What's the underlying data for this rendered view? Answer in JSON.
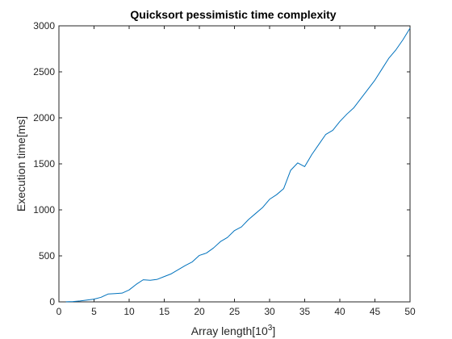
{
  "chart_data": {
    "type": "line",
    "title": "Quicksort pessimistic time complexity",
    "xlabel": "Array length[10",
    "xlabel_superscript": "3",
    "xlabel_suffix": "]",
    "ylabel": "Execution time[ms]",
    "xlim": [
      0,
      50
    ],
    "ylim": [
      0,
      3000
    ],
    "xticks": [
      0,
      5,
      10,
      15,
      20,
      25,
      30,
      35,
      40,
      45,
      50
    ],
    "yticks": [
      0,
      500,
      1000,
      1500,
      2000,
      2500,
      3000
    ],
    "grid": false,
    "legend": "none",
    "colors": {
      "line": "#0072BD",
      "axes": "#262626",
      "background": "#ffffff"
    },
    "x": [
      1,
      2,
      3,
      4,
      5,
      6,
      7,
      8,
      9,
      10,
      11,
      12,
      13,
      14,
      15,
      16,
      17,
      18,
      19,
      20,
      21,
      22,
      23,
      24,
      25,
      26,
      27,
      28,
      29,
      30,
      31,
      32,
      33,
      34,
      35,
      36,
      37,
      38,
      39,
      40,
      41,
      42,
      43,
      44,
      45,
      46,
      47,
      48,
      49,
      50
    ],
    "series": [
      {
        "values": [
          1,
          3,
          10,
          20,
          30,
          50,
          85,
          90,
          95,
          130,
          190,
          240,
          235,
          245,
          275,
          305,
          350,
          395,
          435,
          505,
          530,
          585,
          655,
          700,
          775,
          815,
          895,
          960,
          1025,
          1115,
          1165,
          1230,
          1430,
          1510,
          1470,
          1600,
          1710,
          1820,
          1865,
          1960,
          2040,
          2110,
          2210,
          2310,
          2410,
          2530,
          2650,
          2740,
          2850,
          2975
        ]
      }
    ]
  }
}
